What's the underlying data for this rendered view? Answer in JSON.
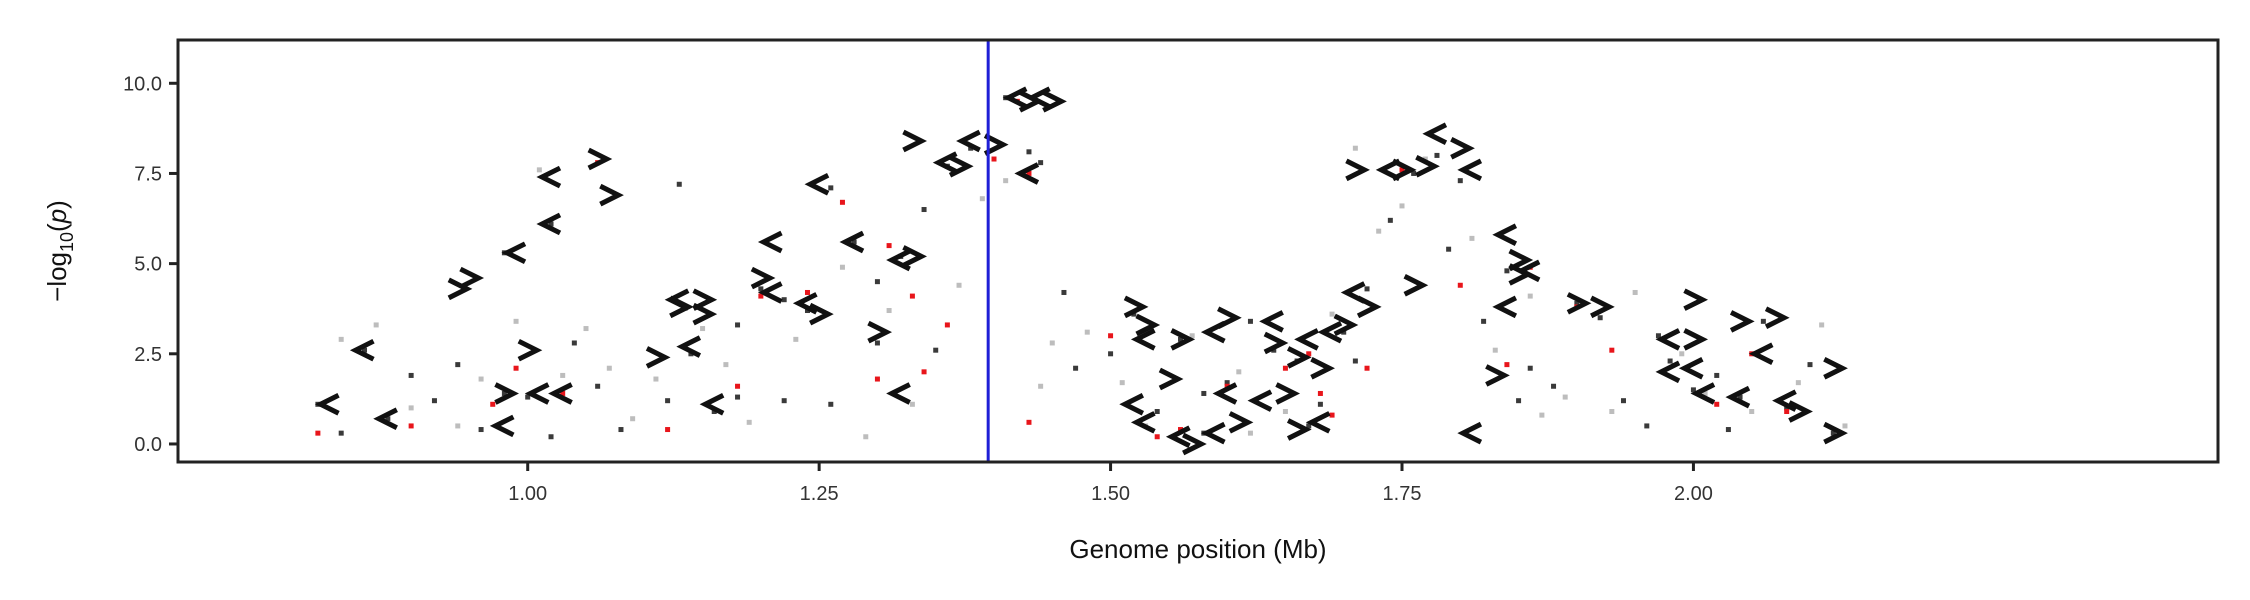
{
  "chart_data": {
    "type": "scatter",
    "title": "",
    "xlabel": "Genome position (Mb)",
    "ylabel_parts": [
      "−log",
      "10",
      "(",
      "p",
      ")"
    ],
    "xlim": [
      0.7,
      2.45
    ],
    "ylim": [
      -0.5,
      11.2
    ],
    "xticks": [
      {
        "value": 1.0,
        "label": "1.00"
      },
      {
        "value": 1.25,
        "label": "1.25"
      },
      {
        "value": 1.5,
        "label": "1.50"
      },
      {
        "value": 1.75,
        "label": "1.75"
      },
      {
        "value": 2.0,
        "label": "2.00"
      }
    ],
    "yticks": [
      {
        "value": 0.0,
        "label": "0.0"
      },
      {
        "value": 2.5,
        "label": "2.5"
      },
      {
        "value": 5.0,
        "label": "5.0"
      },
      {
        "value": 7.5,
        "label": "7.5"
      },
      {
        "value": 10.0,
        "label": "10.0"
      }
    ],
    "grid": false,
    "legend": "none",
    "vline": {
      "x": 1.395,
      "color": "#1f1fd6"
    },
    "colors": {
      "dark": "#3a3a3a",
      "light": "#bdbdbd",
      "red": "#e8151b",
      "gene": "#111111"
    },
    "series": [
      {
        "color": "dark",
        "points": [
          [
            0.82,
            1.1
          ],
          [
            0.84,
            0.3
          ],
          [
            0.86,
            2.6
          ],
          [
            0.88,
            0.7
          ],
          [
            0.9,
            1.9
          ],
          [
            0.92,
            1.2
          ],
          [
            0.94,
            2.2
          ],
          [
            0.96,
            0.4
          ],
          [
            0.98,
            1.4
          ],
          [
            1.0,
            1.3
          ],
          [
            1.02,
            0.2
          ],
          [
            1.04,
            2.8
          ],
          [
            1.06,
            1.6
          ],
          [
            1.08,
            0.4
          ],
          [
            1.12,
            1.2
          ],
          [
            1.14,
            2.5
          ],
          [
            1.16,
            0.9
          ],
          [
            1.18,
            1.3
          ],
          [
            1.2,
            4.3
          ],
          [
            1.22,
            1.2
          ],
          [
            1.24,
            3.7
          ],
          [
            1.26,
            1.1
          ],
          [
            1.28,
            5.6
          ],
          [
            1.3,
            4.5
          ],
          [
            1.32,
            5.2
          ],
          [
            1.34,
            6.5
          ],
          [
            1.36,
            7.7
          ],
          [
            1.38,
            8.2
          ],
          [
            1.43,
            8.1
          ],
          [
            1.44,
            7.8
          ],
          [
            1.46,
            4.2
          ],
          [
            1.5,
            2.5
          ],
          [
            1.52,
            3.6
          ],
          [
            1.54,
            0.9
          ],
          [
            1.56,
            2.9
          ],
          [
            1.58,
            0.3
          ],
          [
            1.6,
            1.7
          ],
          [
            1.62,
            3.4
          ],
          [
            1.64,
            2.6
          ],
          [
            1.66,
            2.3
          ],
          [
            1.68,
            1.1
          ],
          [
            1.7,
            3.1
          ],
          [
            1.72,
            4.3
          ],
          [
            1.74,
            6.2
          ],
          [
            1.76,
            7.5
          ],
          [
            1.78,
            8.0
          ],
          [
            1.8,
            7.3
          ],
          [
            1.82,
            3.4
          ],
          [
            1.84,
            4.8
          ],
          [
            1.86,
            2.1
          ],
          [
            1.88,
            1.6
          ],
          [
            1.9,
            3.9
          ],
          [
            1.92,
            3.5
          ],
          [
            1.94,
            1.2
          ],
          [
            1.96,
            0.5
          ],
          [
            1.98,
            2.3
          ],
          [
            2.0,
            1.5
          ],
          [
            2.02,
            1.9
          ],
          [
            2.04,
            1.3
          ],
          [
            2.06,
            3.4
          ],
          [
            2.08,
            1.0
          ],
          [
            2.1,
            2.2
          ],
          [
            2.12,
            0.3
          ],
          [
            1.26,
            7.1
          ],
          [
            1.41,
            9.6
          ],
          [
            1.3,
            2.8
          ],
          [
            1.18,
            3.3
          ],
          [
            1.02,
            6.1
          ],
          [
            0.98,
            5.3
          ],
          [
            1.13,
            7.2
          ],
          [
            1.22,
            4.0
          ],
          [
            1.35,
            2.6
          ],
          [
            1.47,
            2.1
          ],
          [
            1.58,
            1.4
          ],
          [
            1.67,
            0.5
          ],
          [
            1.71,
            2.3
          ],
          [
            1.79,
            5.4
          ],
          [
            1.85,
            1.2
          ],
          [
            1.97,
            3.0
          ],
          [
            2.03,
            0.4
          ]
        ]
      },
      {
        "color": "light",
        "points": [
          [
            0.84,
            2.9
          ],
          [
            0.87,
            3.3
          ],
          [
            0.9,
            1.0
          ],
          [
            0.94,
            0.5
          ],
          [
            0.99,
            3.4
          ],
          [
            1.01,
            7.6
          ],
          [
            1.03,
            1.9
          ],
          [
            1.05,
            3.2
          ],
          [
            1.07,
            2.1
          ],
          [
            1.09,
            0.7
          ],
          [
            1.11,
            1.8
          ],
          [
            1.15,
            3.2
          ],
          [
            1.19,
            0.6
          ],
          [
            1.23,
            2.9
          ],
          [
            1.27,
            4.9
          ],
          [
            1.31,
            3.7
          ],
          [
            1.33,
            1.1
          ],
          [
            1.37,
            4.4
          ],
          [
            1.41,
            7.3
          ],
          [
            1.45,
            2.8
          ],
          [
            1.48,
            3.1
          ],
          [
            1.51,
            1.7
          ],
          [
            1.53,
            0.5
          ],
          [
            1.57,
            3.0
          ],
          [
            1.61,
            2.0
          ],
          [
            1.65,
            0.9
          ],
          [
            1.69,
            3.6
          ],
          [
            1.71,
            8.2
          ],
          [
            1.73,
            5.9
          ],
          [
            1.75,
            6.6
          ],
          [
            1.77,
            7.9
          ],
          [
            1.81,
            5.7
          ],
          [
            1.83,
            2.6
          ],
          [
            1.87,
            0.8
          ],
          [
            1.89,
            1.3
          ],
          [
            1.93,
            0.9
          ],
          [
            1.95,
            4.2
          ],
          [
            1.99,
            2.5
          ],
          [
            2.01,
            1.4
          ],
          [
            2.05,
            0.9
          ],
          [
            2.09,
            1.7
          ],
          [
            2.11,
            3.3
          ],
          [
            2.13,
            0.5
          ],
          [
            1.44,
            1.6
          ],
          [
            1.39,
            6.8
          ],
          [
            1.29,
            0.2
          ],
          [
            1.17,
            2.2
          ],
          [
            0.96,
            1.8
          ],
          [
            1.62,
            0.3
          ],
          [
            1.86,
            4.1
          ]
        ]
      },
      {
        "color": "red",
        "points": [
          [
            0.82,
            0.3
          ],
          [
            0.9,
            0.5
          ],
          [
            0.97,
            1.1
          ],
          [
            1.03,
            1.4
          ],
          [
            1.06,
            7.8
          ],
          [
            1.2,
            4.1
          ],
          [
            1.24,
            4.2
          ],
          [
            1.27,
            6.7
          ],
          [
            1.3,
            1.8
          ],
          [
            1.31,
            5.5
          ],
          [
            1.33,
            4.1
          ],
          [
            1.34,
            2.0
          ],
          [
            1.36,
            3.3
          ],
          [
            1.4,
            7.9
          ],
          [
            1.42,
            9.5
          ],
          [
            1.43,
            7.5
          ],
          [
            1.43,
            0.6
          ],
          [
            1.5,
            3.0
          ],
          [
            1.54,
            0.2
          ],
          [
            1.56,
            0.4
          ],
          [
            1.6,
            1.6
          ],
          [
            1.65,
            2.1
          ],
          [
            1.67,
            2.5
          ],
          [
            1.68,
            1.4
          ],
          [
            1.69,
            0.8
          ],
          [
            1.72,
            2.1
          ],
          [
            1.75,
            7.6
          ],
          [
            1.8,
            4.4
          ],
          [
            1.84,
            2.2
          ],
          [
            1.86,
            4.9
          ],
          [
            1.9,
            3.8
          ],
          [
            1.93,
            2.6
          ],
          [
            2.02,
            1.1
          ],
          [
            2.05,
            2.5
          ],
          [
            2.08,
            0.9
          ],
          [
            1.18,
            1.6
          ],
          [
            1.12,
            0.4
          ],
          [
            0.99,
            2.1
          ]
        ]
      }
    ],
    "genes": [
      {
        "x": 0.83,
        "y": 1.1,
        "d": "<"
      },
      {
        "x": 0.86,
        "y": 2.6,
        "d": "<"
      },
      {
        "x": 0.88,
        "y": 0.7,
        "d": "<"
      },
      {
        "x": 0.94,
        "y": 4.3,
        "d": ">"
      },
      {
        "x": 0.95,
        "y": 4.6,
        "d": ">"
      },
      {
        "x": 0.98,
        "y": 1.4,
        "d": ">"
      },
      {
        "x": 0.98,
        "y": 0.5,
        "d": "<"
      },
      {
        "x": 0.99,
        "y": 5.3,
        "d": "<"
      },
      {
        "x": 1.0,
        "y": 2.6,
        "d": ">"
      },
      {
        "x": 1.01,
        "y": 1.4,
        "d": "<"
      },
      {
        "x": 1.03,
        "y": 1.4,
        "d": "<"
      },
      {
        "x": 1.02,
        "y": 7.4,
        "d": "<"
      },
      {
        "x": 1.02,
        "y": 6.1,
        "d": "<"
      },
      {
        "x": 1.06,
        "y": 7.9,
        "d": ">"
      },
      {
        "x": 1.07,
        "y": 6.9,
        "d": ">"
      },
      {
        "x": 1.11,
        "y": 2.4,
        "d": ">"
      },
      {
        "x": 1.13,
        "y": 4.0,
        "d": "<"
      },
      {
        "x": 1.13,
        "y": 3.8,
        "d": ">"
      },
      {
        "x": 1.15,
        "y": 4.0,
        "d": ">"
      },
      {
        "x": 1.15,
        "y": 3.6,
        "d": ">"
      },
      {
        "x": 1.14,
        "y": 2.7,
        "d": "<"
      },
      {
        "x": 1.16,
        "y": 1.1,
        "d": "<"
      },
      {
        "x": 1.2,
        "y": 4.6,
        "d": ">"
      },
      {
        "x": 1.21,
        "y": 4.2,
        "d": "<"
      },
      {
        "x": 1.21,
        "y": 5.6,
        "d": "<"
      },
      {
        "x": 1.24,
        "y": 3.9,
        "d": "<"
      },
      {
        "x": 1.25,
        "y": 3.6,
        "d": ">"
      },
      {
        "x": 1.25,
        "y": 7.2,
        "d": "<"
      },
      {
        "x": 1.28,
        "y": 5.6,
        "d": "<"
      },
      {
        "x": 1.3,
        "y": 3.1,
        "d": ">"
      },
      {
        "x": 1.32,
        "y": 5.1,
        "d": "<"
      },
      {
        "x": 1.33,
        "y": 5.2,
        "d": ">"
      },
      {
        "x": 1.32,
        "y": 1.4,
        "d": "<"
      },
      {
        "x": 1.33,
        "y": 8.4,
        "d": ">"
      },
      {
        "x": 1.36,
        "y": 7.8,
        "d": "<"
      },
      {
        "x": 1.37,
        "y": 7.7,
        "d": ">"
      },
      {
        "x": 1.38,
        "y": 8.4,
        "d": "<"
      },
      {
        "x": 1.4,
        "y": 8.3,
        "d": ">"
      },
      {
        "x": 1.42,
        "y": 9.6,
        "d": "<"
      },
      {
        "x": 1.43,
        "y": 9.5,
        "d": ">"
      },
      {
        "x": 1.44,
        "y": 9.6,
        "d": "<"
      },
      {
        "x": 1.45,
        "y": 9.5,
        "d": ">"
      },
      {
        "x": 1.43,
        "y": 7.5,
        "d": "<"
      },
      {
        "x": 1.52,
        "y": 3.8,
        "d": ">"
      },
      {
        "x": 1.53,
        "y": 3.3,
        "d": ">"
      },
      {
        "x": 1.53,
        "y": 2.9,
        "d": "<"
      },
      {
        "x": 1.52,
        "y": 1.1,
        "d": "<"
      },
      {
        "x": 1.53,
        "y": 0.6,
        "d": "<"
      },
      {
        "x": 1.55,
        "y": 1.8,
        "d": ">"
      },
      {
        "x": 1.56,
        "y": 2.9,
        "d": ">"
      },
      {
        "x": 1.56,
        "y": 0.2,
        "d": "<"
      },
      {
        "x": 1.57,
        "y": 0.0,
        "d": ">"
      },
      {
        "x": 1.59,
        "y": 0.3,
        "d": "<"
      },
      {
        "x": 1.59,
        "y": 3.1,
        "d": "<"
      },
      {
        "x": 1.6,
        "y": 3.5,
        "d": ">"
      },
      {
        "x": 1.6,
        "y": 1.4,
        "d": "<"
      },
      {
        "x": 1.61,
        "y": 0.6,
        "d": ">"
      },
      {
        "x": 1.63,
        "y": 1.2,
        "d": "<"
      },
      {
        "x": 1.64,
        "y": 3.4,
        "d": "<"
      },
      {
        "x": 1.64,
        "y": 2.8,
        "d": ">"
      },
      {
        "x": 1.65,
        "y": 1.4,
        "d": ">"
      },
      {
        "x": 1.66,
        "y": 2.4,
        "d": ">"
      },
      {
        "x": 1.67,
        "y": 2.9,
        "d": "<"
      },
      {
        "x": 1.68,
        "y": 2.1,
        "d": ">"
      },
      {
        "x": 1.68,
        "y": 0.6,
        "d": "<"
      },
      {
        "x": 1.66,
        "y": 0.4,
        "d": ">"
      },
      {
        "x": 1.69,
        "y": 3.1,
        "d": "<"
      },
      {
        "x": 1.7,
        "y": 3.3,
        "d": ">"
      },
      {
        "x": 1.71,
        "y": 4.2,
        "d": "<"
      },
      {
        "x": 1.72,
        "y": 3.8,
        "d": ">"
      },
      {
        "x": 1.71,
        "y": 7.6,
        "d": ">"
      },
      {
        "x": 1.74,
        "y": 7.6,
        "d": "<"
      },
      {
        "x": 1.75,
        "y": 7.6,
        "d": ">"
      },
      {
        "x": 1.77,
        "y": 7.7,
        "d": ">"
      },
      {
        "x": 1.78,
        "y": 8.6,
        "d": "<"
      },
      {
        "x": 1.8,
        "y": 8.2,
        "d": ">"
      },
      {
        "x": 1.81,
        "y": 7.6,
        "d": "<"
      },
      {
        "x": 1.76,
        "y": 4.4,
        "d": ">"
      },
      {
        "x": 1.81,
        "y": 0.3,
        "d": "<"
      },
      {
        "x": 1.83,
        "y": 1.9,
        "d": ">"
      },
      {
        "x": 1.84,
        "y": 3.8,
        "d": "<"
      },
      {
        "x": 1.84,
        "y": 5.8,
        "d": "<"
      },
      {
        "x": 1.85,
        "y": 5.1,
        "d": ">"
      },
      {
        "x": 1.86,
        "y": 4.8,
        "d": "<"
      },
      {
        "x": 1.85,
        "y": 4.7,
        "d": ">"
      },
      {
        "x": 1.9,
        "y": 3.9,
        "d": ">"
      },
      {
        "x": 1.92,
        "y": 3.8,
        "d": ">"
      },
      {
        "x": 1.98,
        "y": 2.9,
        "d": "<"
      },
      {
        "x": 2.0,
        "y": 2.9,
        "d": ">"
      },
      {
        "x": 2.0,
        "y": 4.0,
        "d": ">"
      },
      {
        "x": 1.98,
        "y": 2.0,
        "d": "<"
      },
      {
        "x": 2.0,
        "y": 2.1,
        "d": "<"
      },
      {
        "x": 2.01,
        "y": 1.4,
        "d": "<"
      },
      {
        "x": 2.04,
        "y": 1.3,
        "d": "<"
      },
      {
        "x": 2.06,
        "y": 2.5,
        "d": "<"
      },
      {
        "x": 2.04,
        "y": 3.4,
        "d": ">"
      },
      {
        "x": 2.07,
        "y": 3.5,
        "d": ">"
      },
      {
        "x": 2.08,
        "y": 1.2,
        "d": "<"
      },
      {
        "x": 2.09,
        "y": 0.9,
        "d": ">"
      },
      {
        "x": 2.12,
        "y": 2.1,
        "d": ">"
      },
      {
        "x": 2.12,
        "y": 0.3,
        "d": ">"
      }
    ]
  }
}
